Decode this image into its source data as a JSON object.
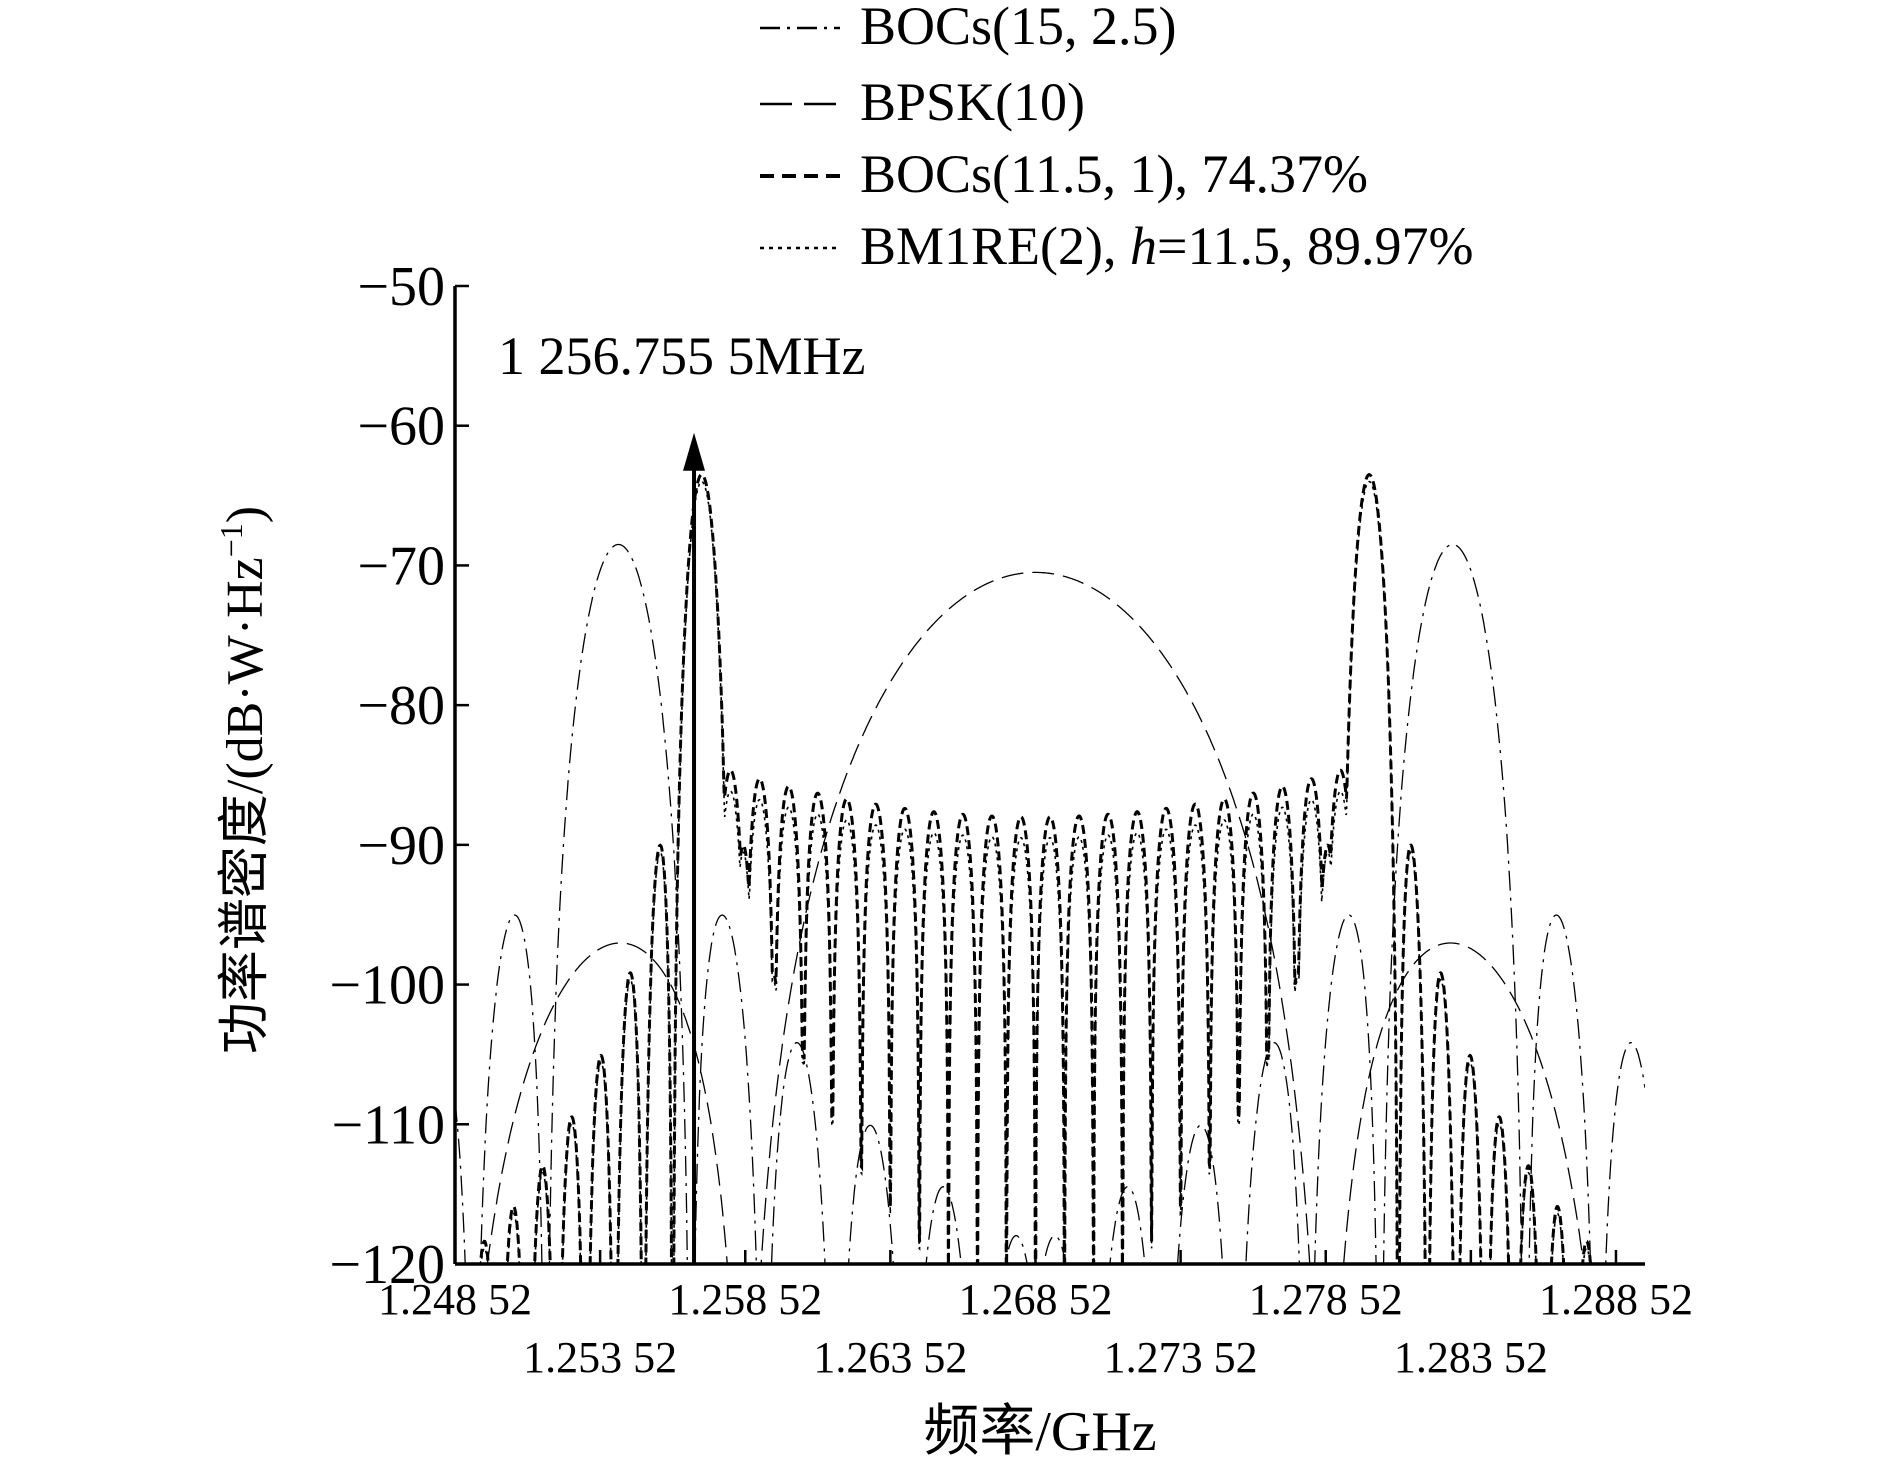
{
  "chart_data": {
    "type": "line",
    "title": "",
    "xlabel": "频率/GHz",
    "ylabel": "功率谱密度/(dB·W·Hz",
    "ylabel_sup": "−1",
    "ylabel_close": ")",
    "xlim": [
      1.24852,
      1.28952
    ],
    "ylim": [
      -120,
      -50
    ],
    "grid": false,
    "legend_position": "top",
    "x_ticks": [
      {
        "value": 1.24852,
        "label": "1.248 52",
        "row": 0
      },
      {
        "value": 1.25352,
        "label": "1.253 52",
        "row": 1
      },
      {
        "value": 1.25852,
        "label": "1.258 52",
        "row": 0
      },
      {
        "value": 1.26352,
        "label": "1.263 52",
        "row": 1
      },
      {
        "value": 1.26852,
        "label": "1.268 52",
        "row": 0
      },
      {
        "value": 1.27352,
        "label": "1.273 52",
        "row": 1
      },
      {
        "value": 1.27852,
        "label": "1.278 52",
        "row": 0
      },
      {
        "value": 1.28352,
        "label": "1.283 52",
        "row": 1
      },
      {
        "value": 1.28852,
        "label": "1.288 52",
        "row": 0
      }
    ],
    "y_ticks": [
      {
        "value": -50,
        "label": "−50"
      },
      {
        "value": -60,
        "label": "−60"
      },
      {
        "value": -70,
        "label": "−70"
      },
      {
        "value": -80,
        "label": "−80"
      },
      {
        "value": -90,
        "label": "−90"
      },
      {
        "value": -100,
        "label": "−100"
      },
      {
        "value": -110,
        "label": "−110"
      },
      {
        "value": -120,
        "label": "−120"
      }
    ],
    "annotation": {
      "text": "1 256.755 5MHz",
      "x": 1.2567555,
      "y_from": -120,
      "y_to": -60.5
    },
    "series": [
      {
        "legend": "BOCs(15, 2.5)",
        "dash": "20,7,3,7",
        "stroke_width": 1.3,
        "peaks": [
          {
            "x": 1.25415,
            "y": -68.5
          },
          {
            "x": 1.28289,
            "y": -68.5
          }
        ]
      },
      {
        "legend": "BPSK(10)",
        "dash": "22,9",
        "stroke_width": 1.3,
        "peaks": [
          {
            "x": 1.26852,
            "y": -70.5
          }
        ]
      },
      {
        "legend": "BOCs(11.5, 1), 74.37%",
        "dash": "9,5",
        "stroke_width": 3,
        "peaks": [
          {
            "x": 1.25702,
            "y": -63.5
          },
          {
            "x": 1.28002,
            "y": -63.5
          }
        ]
      },
      {
        "legend_prefix": "BM1RE(2), ",
        "legend_italic": "h",
        "legend_suffix": "=11.5, 89.97%",
        "dash": "3,4",
        "stroke_width": 1.6,
        "peaks": [
          {
            "x": 1.25702,
            "y": -64
          },
          {
            "x": 1.28002,
            "y": -64
          }
        ]
      }
    ]
  }
}
